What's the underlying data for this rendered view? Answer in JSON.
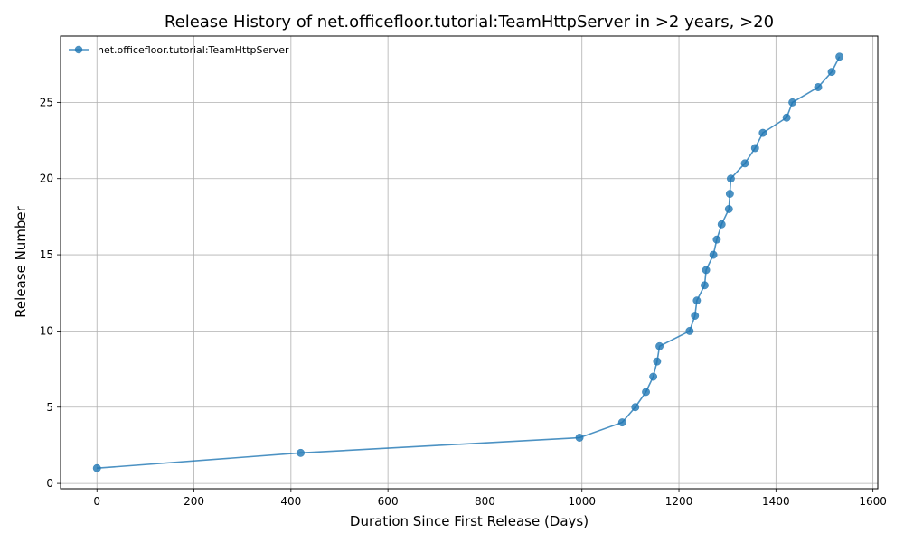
{
  "chart_data": {
    "type": "line",
    "title": "Release History of net.officefloor.tutorial:TeamHttpServer in >2 years, >20",
    "xlabel": "Duration Since First Release (Days)",
    "ylabel": "Release Number",
    "xlim": [
      -75,
      1610
    ],
    "ylim": [
      -0.35,
      29.35
    ],
    "xticks": [
      0,
      200,
      400,
      600,
      800,
      1000,
      1200,
      1400,
      1600
    ],
    "yticks": [
      0,
      5,
      10,
      15,
      20,
      25
    ],
    "grid": true,
    "legend_position": "top-left",
    "series": [
      {
        "name": "net.officefloor.tutorial:TeamHttpServer",
        "color": "#1f77b4",
        "marker": "circle",
        "points": [
          {
            "x": 0,
            "y": 1
          },
          {
            "x": 420,
            "y": 2
          },
          {
            "x": 995,
            "y": 3
          },
          {
            "x": 1083,
            "y": 4
          },
          {
            "x": 1110,
            "y": 5
          },
          {
            "x": 1132,
            "y": 6
          },
          {
            "x": 1147,
            "y": 7
          },
          {
            "x": 1155,
            "y": 8
          },
          {
            "x": 1160,
            "y": 9
          },
          {
            "x": 1222,
            "y": 10
          },
          {
            "x": 1233,
            "y": 11
          },
          {
            "x": 1237,
            "y": 12
          },
          {
            "x": 1253,
            "y": 13
          },
          {
            "x": 1256,
            "y": 14
          },
          {
            "x": 1271,
            "y": 15
          },
          {
            "x": 1278,
            "y": 16
          },
          {
            "x": 1288,
            "y": 17
          },
          {
            "x": 1303,
            "y": 18
          },
          {
            "x": 1305,
            "y": 19
          },
          {
            "x": 1307,
            "y": 20
          },
          {
            "x": 1336,
            "y": 21
          },
          {
            "x": 1357,
            "y": 22
          },
          {
            "x": 1373,
            "y": 23
          },
          {
            "x": 1422,
            "y": 24
          },
          {
            "x": 1434,
            "y": 25
          },
          {
            "x": 1487,
            "y": 26
          },
          {
            "x": 1515,
            "y": 27
          },
          {
            "x": 1531,
            "y": 28
          }
        ]
      }
    ]
  }
}
